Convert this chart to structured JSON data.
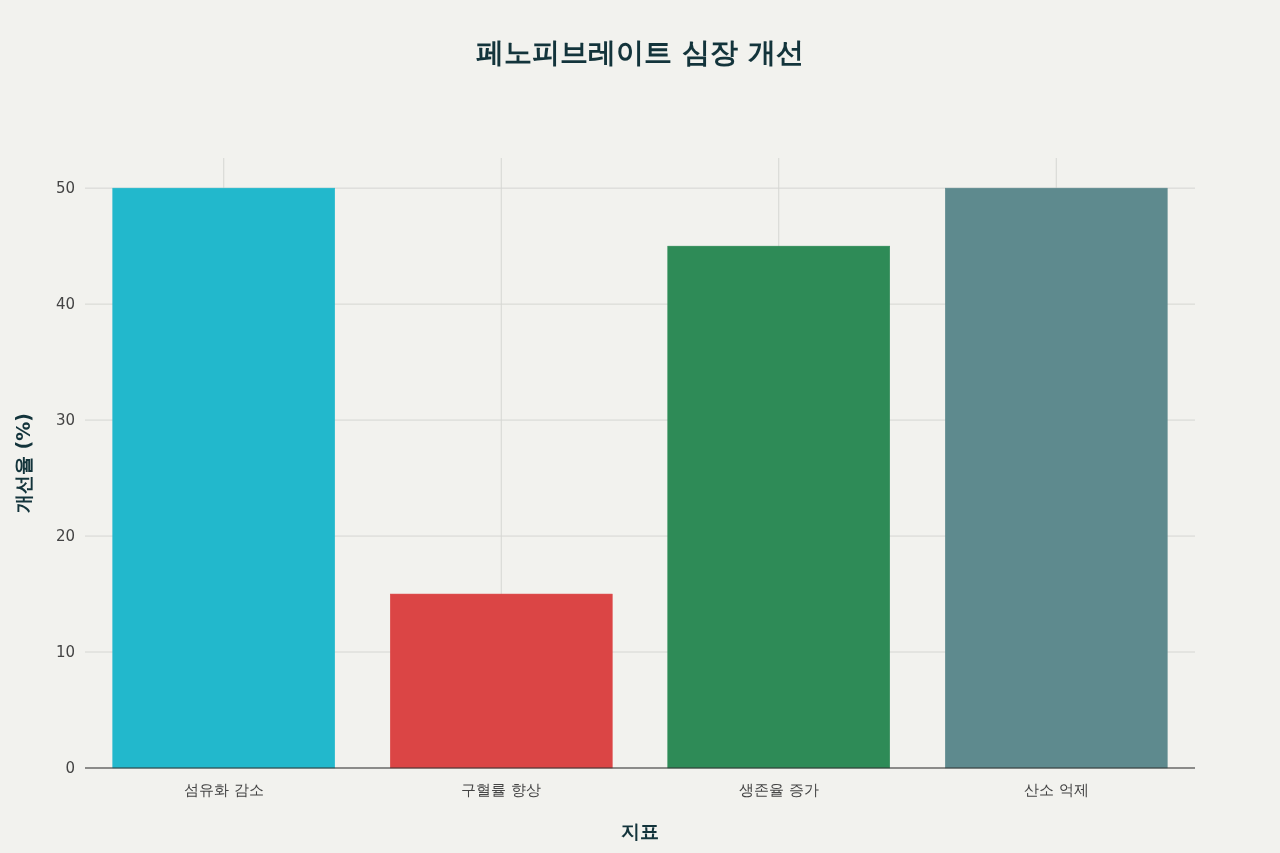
{
  "chart_data": {
    "type": "bar",
    "title": "페노피브레이트 심장 개선",
    "xlabel": "지표",
    "ylabel": "개선율 (%)",
    "categories": [
      "섬유화 감소",
      "구혈률 향상",
      "생존율 증가",
      "산소 억제"
    ],
    "values": [
      50,
      15,
      45,
      50
    ],
    "colors": [
      "#22b8cc",
      "#db4545",
      "#2e8b57",
      "#5e8a8e"
    ],
    "ylim": [
      0,
      52.6
    ],
    "yticks": [
      0,
      10,
      20,
      30,
      40,
      50
    ],
    "grid": true
  }
}
